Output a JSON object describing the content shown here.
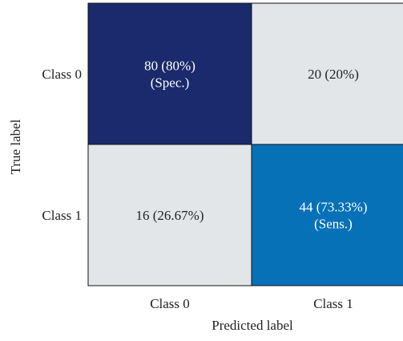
{
  "chart_data": {
    "type": "heatmap",
    "title": "",
    "xlabel": "Predicted label",
    "ylabel": "True label",
    "x_categories": [
      "Class 0",
      "Class 1"
    ],
    "y_categories": [
      "Class 0",
      "Class 1"
    ],
    "values": [
      [
        80,
        20
      ],
      [
        16,
        44
      ]
    ],
    "cell_labels": [
      [
        [
          "80 (80%)",
          "(Spec.)"
        ],
        [
          "20 (20%)"
        ]
      ],
      [
        [
          "16 (26.67%)"
        ],
        [
          "44 (73.33%)",
          "(Sens.)"
        ]
      ]
    ],
    "cell_colors": [
      [
        "#1a2a6c",
        "#e3e6e8"
      ],
      [
        "#e3e6e8",
        "#0771b8"
      ]
    ],
    "cell_text_colors": [
      [
        "#ffffff",
        "#222222"
      ],
      [
        "#222222",
        "#ffffff"
      ]
    ],
    "grid": false,
    "legend": "none"
  }
}
